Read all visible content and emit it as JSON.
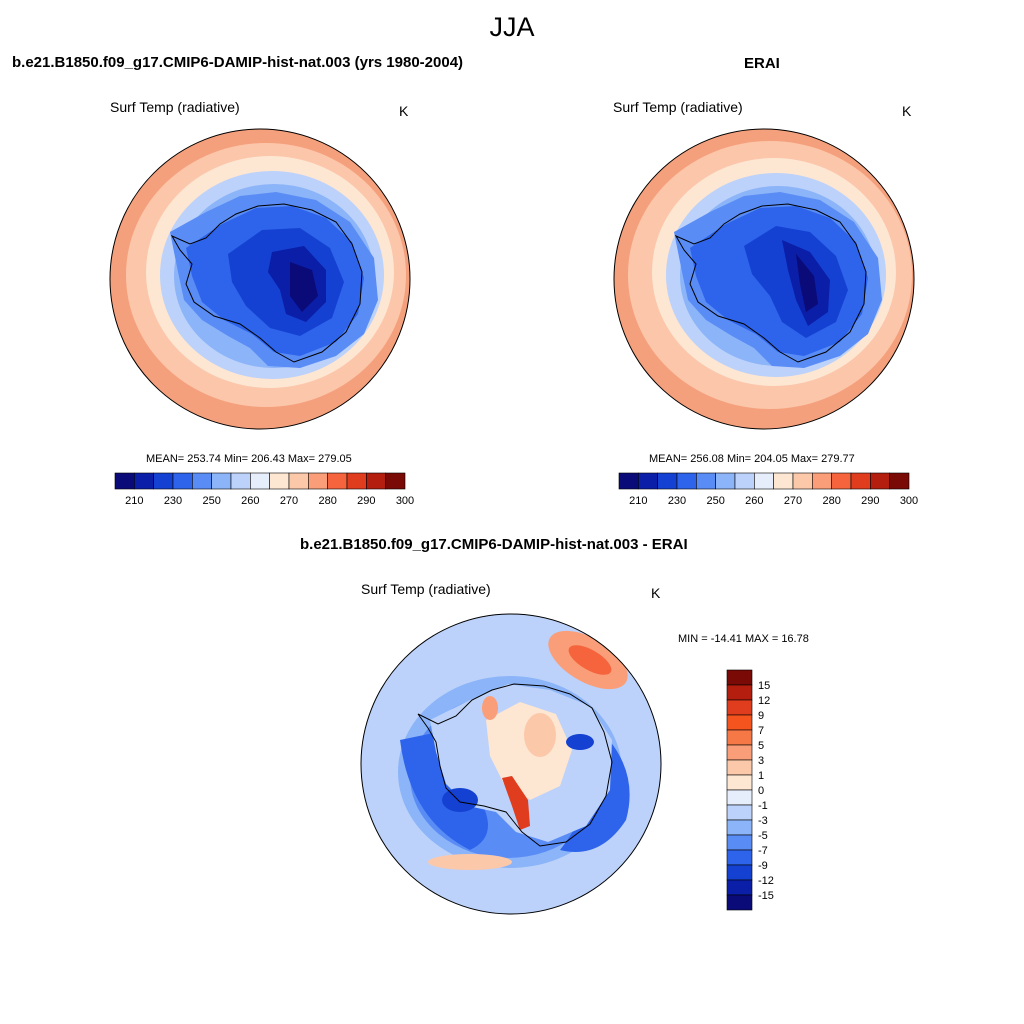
{
  "title": "JJA",
  "panels": [
    {
      "case_title": "b.e21.B1850.f09_g17.CMIP6-DAMIP-hist-nat.003 (yrs 1980-2004)",
      "variable": "Surf Temp (radiative)",
      "units": "K",
      "stats": "MEAN= 253.74  Min= 206.43  Max= 279.05"
    },
    {
      "case_title": "ERAI",
      "variable": "Surf Temp (radiative)",
      "units": "K",
      "stats": "MEAN= 256.08  Min= 204.05  Max= 279.77"
    },
    {
      "case_title": "b.e21.B1850.f09_g17.CMIP6-DAMIP-hist-nat.003 - ERAI",
      "variable": "Surf Temp (radiative)",
      "units": "K",
      "stats": "MIN = -14.41 MAX =  16.78"
    }
  ],
  "chart_data": [
    {
      "type": "heatmap",
      "title": "b.e21.B1850.f09_g17.CMIP6-DAMIP-hist-nat.003 (yrs 1980-2004)",
      "subtitle": "Surf Temp (radiative)",
      "units": "K",
      "projection": "south-polar-stereographic",
      "mean": 253.74,
      "min": 206.43,
      "max": 279.05,
      "colorbar_ticks": [
        "210",
        "230",
        "250",
        "260",
        "270",
        "280",
        "290",
        "300"
      ],
      "colorbar_colors": [
        "#0a0a78",
        "#0a1ea8",
        "#1441d2",
        "#2d64eb",
        "#5a8cf5",
        "#8cb4f8",
        "#bcd2fa",
        "#e6eefc",
        "#fde6d2",
        "#fcc8aa",
        "#f99e78",
        "#f5643c",
        "#e03c1e",
        "#b41e0f",
        "#7a0a05"
      ]
    },
    {
      "type": "heatmap",
      "title": "ERAI",
      "subtitle": "Surf Temp (radiative)",
      "units": "K",
      "projection": "south-polar-stereographic",
      "mean": 256.08,
      "min": 204.05,
      "max": 279.77,
      "colorbar_ticks": [
        "210",
        "230",
        "250",
        "260",
        "270",
        "280",
        "290",
        "300"
      ],
      "colorbar_colors": [
        "#0a0a78",
        "#0a1ea8",
        "#1441d2",
        "#2d64eb",
        "#5a8cf5",
        "#8cb4f8",
        "#bcd2fa",
        "#e6eefc",
        "#fde6d2",
        "#fcc8aa",
        "#f99e78",
        "#f5643c",
        "#e03c1e",
        "#b41e0f",
        "#7a0a05"
      ]
    },
    {
      "type": "heatmap",
      "title": "b.e21.B1850.f09_g17.CMIP6-DAMIP-hist-nat.003 - ERAI",
      "subtitle": "Surf Temp (radiative)",
      "units": "K",
      "projection": "south-polar-stereographic",
      "min": -14.41,
      "max": 16.78,
      "colorbar_ticks": [
        "15",
        "12",
        "9",
        "7",
        "5",
        "3",
        "1",
        "0",
        "-1",
        "-3",
        "-5",
        "-7",
        "-9",
        "-12",
        "-15"
      ],
      "colorbar_colors": [
        "#7a0a05",
        "#b41e0f",
        "#e03c1e",
        "#f5541e",
        "#f57846",
        "#f99e78",
        "#fcc8aa",
        "#fde6d2",
        "#e6eefc",
        "#bcd2fa",
        "#8cb4f8",
        "#5a8cf5",
        "#2d64eb",
        "#1441d2",
        "#0a1ea8",
        "#0a0a78"
      ]
    }
  ]
}
